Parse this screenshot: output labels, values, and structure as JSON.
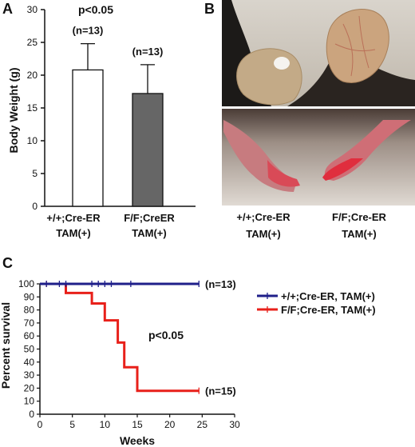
{
  "figure": {
    "panel_a": {
      "letter": "A",
      "pvalue": "p<0.05"
    },
    "panel_b": {
      "letter": "B",
      "labels": [
        "+/+;Cre-ER",
        "TAM(+)",
        "F/F;Cre-ER",
        "TAM(+)"
      ]
    },
    "panel_c": {
      "letter": "C"
    }
  },
  "colors": {
    "bar_wt": "#ffffff",
    "bar_ko": "#666666",
    "line_wt": "#1f1f8a",
    "line_ko": "#e8201a"
  },
  "chart_data": [
    {
      "id": "body-weight",
      "type": "bar",
      "categories": [
        "+/+;Cre-ER\nTAM(+)",
        "F/F;CreER\nTAM(+)"
      ],
      "values": [
        20.8,
        17.2
      ],
      "errors": [
        4.0,
        4.4
      ],
      "annotations": [
        "(n=13)",
        "(n=13)"
      ],
      "pvalue": "p<0.05",
      "ylabel": "Body Weight (g)",
      "xlabel": "",
      "ylim": [
        0,
        30
      ],
      "yticks": [
        0,
        5,
        10,
        15,
        20,
        25,
        30
      ]
    },
    {
      "id": "survival",
      "type": "line",
      "xlabel": "Weeks",
      "ylabel": "Percent survival",
      "xlim": [
        0,
        30
      ],
      "ylim": [
        0,
        100
      ],
      "xticks": [
        0,
        5,
        10,
        15,
        20,
        25,
        30
      ],
      "yticks": [
        0,
        10,
        20,
        30,
        40,
        50,
        60,
        70,
        80,
        90,
        100
      ],
      "pvalue": "p<0.05",
      "legend_placement": "top-right",
      "series": [
        {
          "name": "+/+;Cre-ER, TAM(+)",
          "n_label": "(n=13)",
          "steps": [
            [
              0,
              100
            ],
            [
              24.5,
              100
            ]
          ],
          "censor_x": [
            1,
            3,
            4,
            8,
            9,
            10,
            11,
            14,
            24.5
          ]
        },
        {
          "name": "F/F;Cre-ER, TAM(+)",
          "n_label": "(n=15)",
          "steps": [
            [
              0,
              100
            ],
            [
              4,
              100
            ],
            [
              4,
              93
            ],
            [
              8,
              93
            ],
            [
              8,
              85
            ],
            [
              10,
              85
            ],
            [
              10,
              72
            ],
            [
              12,
              72
            ],
            [
              12,
              55
            ],
            [
              13,
              55
            ],
            [
              13,
              36
            ],
            [
              15,
              36
            ],
            [
              15,
              18
            ],
            [
              24.5,
              18
            ]
          ],
          "censor_x": [
            1,
            24.5
          ]
        }
      ]
    }
  ]
}
